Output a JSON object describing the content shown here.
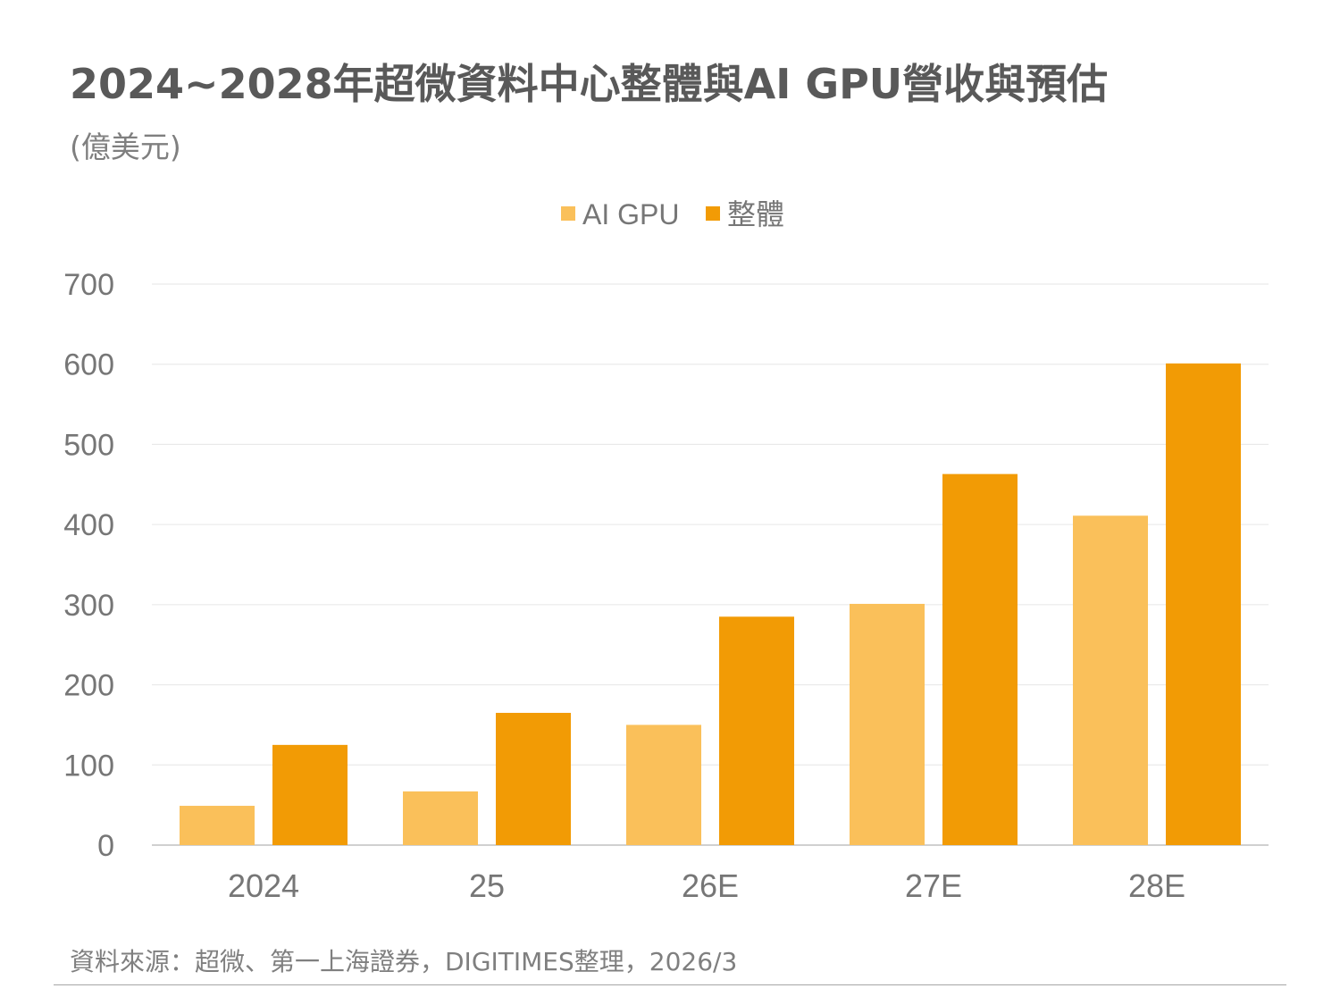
{
  "chart_data": {
    "type": "bar",
    "title": "2024~2028年超微資料中心整體與AI GPU營收與預估",
    "subtitle": "(億美元)",
    "categories": [
      "2024",
      "25",
      "26E",
      "27E",
      "28E"
    ],
    "series": [
      {
        "name": "AI GPU",
        "values": [
          49,
          67,
          150,
          301,
          411
        ],
        "color": "#FAC05A"
      },
      {
        "name": "整體",
        "values": [
          125,
          165,
          285,
          463,
          601
        ],
        "color": "#F29B05"
      }
    ],
    "ylim": [
      0,
      700
    ],
    "yticks": [
      0,
      100,
      200,
      300,
      400,
      500,
      600,
      700
    ],
    "grid": true,
    "legend": "top-center",
    "source": "資料來源：超微、第一上海證券，DIGITIMES整理，2026/3"
  }
}
